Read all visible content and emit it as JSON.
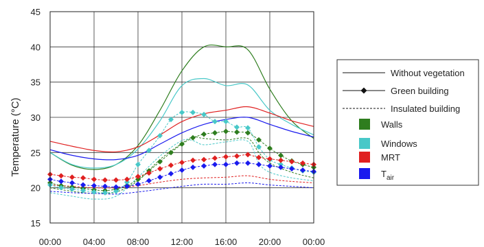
{
  "chart_data": {
    "type": "line",
    "title": "",
    "xlabel": "",
    "ylabel": "Temperature (°C)",
    "x_ticks": [
      "00:00",
      "04:00",
      "08:00",
      "12:00",
      "16:00",
      "20:00",
      "00:00"
    ],
    "x_range_hours": [
      0,
      24
    ],
    "ylim": [
      15,
      45
    ],
    "y_ticks": [
      15,
      20,
      25,
      30,
      35,
      40,
      45
    ],
    "grid": true,
    "legend_position": "right",
    "legend": {
      "styles": [
        {
          "label": "Without vegetation",
          "style": "solid"
        },
        {
          "label": "Green building",
          "style": "diamond"
        },
        {
          "label": "Insulated building",
          "style": "dashed"
        }
      ],
      "variables": [
        {
          "label": "Walls",
          "sub": "",
          "color": "#2e7d1e"
        },
        {
          "label": "Windows",
          "sub": "",
          "color": "#48c8c8"
        },
        {
          "label": "MRT",
          "sub": "",
          "color": "#e02020"
        },
        {
          "label": "T",
          "sub": "air",
          "color": "#1a1aee"
        }
      ]
    },
    "series": [
      {
        "variable": "Walls",
        "style": "solid",
        "color": "#2e7d1e",
        "x": [
          0,
          2,
          4,
          6,
          8,
          10,
          12,
          14,
          16,
          18,
          20,
          22,
          24
        ],
        "y": [
          25,
          23.2,
          22.6,
          23.3,
          26,
          31,
          36.6,
          40,
          40,
          39.6,
          34,
          29.5,
          27
        ]
      },
      {
        "variable": "Windows",
        "style": "solid",
        "color": "#48c8c8",
        "x": [
          0,
          2,
          4,
          6,
          8,
          10,
          12,
          14,
          16,
          18,
          20,
          22,
          24
        ],
        "y": [
          25,
          23.3,
          22.8,
          23.3,
          25.5,
          29.5,
          34.5,
          35.5,
          34.5,
          34.6,
          31,
          29,
          27.5
        ]
      },
      {
        "variable": "MRT",
        "style": "solid",
        "color": "#e02020",
        "x": [
          0,
          2,
          4,
          6,
          8,
          10,
          12,
          14,
          16,
          18,
          20,
          22,
          24
        ],
        "y": [
          26.6,
          25.9,
          25.3,
          25.1,
          25.8,
          27.5,
          29.4,
          30.5,
          31,
          31.5,
          30.6,
          29.5,
          28.7
        ]
      },
      {
        "variable": "T",
        "style": "solid",
        "color": "#1a1aee",
        "x": [
          0,
          2,
          4,
          6,
          8,
          10,
          12,
          14,
          16,
          18,
          20,
          22,
          24
        ],
        "y": [
          25.4,
          24.6,
          24.1,
          24,
          24.6,
          26.2,
          27.8,
          29,
          29.7,
          30,
          29,
          28,
          27.2
        ]
      },
      {
        "variable": "Walls",
        "style": "diamond",
        "color": "#2e7d1e",
        "x": [
          0,
          1,
          2,
          3,
          4,
          5,
          6,
          7,
          8,
          9,
          10,
          11,
          12,
          13,
          14,
          15,
          16,
          17,
          18,
          19,
          20,
          21,
          22,
          23,
          24
        ],
        "y": [
          20.7,
          20.3,
          20.1,
          19.9,
          19.7,
          19.6,
          19.8,
          20.3,
          21.2,
          22.4,
          23.7,
          25,
          26.2,
          27.1,
          27.6,
          27.8,
          28,
          27.9,
          27.8,
          26.8,
          25.6,
          24.6,
          23.8,
          23.3,
          22.9
        ]
      },
      {
        "variable": "Windows",
        "style": "diamond",
        "color": "#48c8c8",
        "x": [
          0,
          1,
          2,
          3,
          4,
          5,
          6,
          7,
          8,
          9,
          10,
          11,
          12,
          13,
          14,
          15,
          16,
          17,
          18,
          19,
          20,
          21,
          22,
          23,
          24
        ],
        "y": [
          20.4,
          20,
          19.8,
          19.6,
          19.4,
          19.3,
          19.5,
          20.8,
          23.3,
          25.3,
          27.4,
          29.7,
          30.7,
          30.7,
          30.4,
          29.4,
          29.4,
          28.6,
          28.5,
          25.8,
          24,
          23.3,
          22.8,
          22.4,
          22.2
        ]
      },
      {
        "variable": "MRT",
        "style": "diamond",
        "color": "#e02020",
        "x": [
          0,
          1,
          2,
          3,
          4,
          5,
          6,
          7,
          8,
          9,
          10,
          11,
          12,
          13,
          14,
          15,
          16,
          17,
          18,
          19,
          20,
          21,
          22,
          23,
          24
        ],
        "y": [
          21.9,
          21.7,
          21.5,
          21.4,
          21.2,
          21.1,
          21.1,
          21.2,
          21.6,
          22.1,
          22.7,
          23.2,
          23.6,
          23.9,
          24,
          24.2,
          24.4,
          24.5,
          24.7,
          24.3,
          24.1,
          23.9,
          23.7,
          23.5,
          23.3
        ]
      },
      {
        "variable": "T",
        "style": "diamond",
        "color": "#1a1aee",
        "x": [
          0,
          1,
          2,
          3,
          4,
          5,
          6,
          7,
          8,
          9,
          10,
          11,
          12,
          13,
          14,
          15,
          16,
          17,
          18,
          19,
          20,
          21,
          22,
          23,
          24
        ],
        "y": [
          21.2,
          20.9,
          20.7,
          20.4,
          20.3,
          20.2,
          20.1,
          20.2,
          20.5,
          21,
          21.5,
          22,
          22.5,
          22.9,
          23.1,
          23.3,
          23.3,
          23.5,
          23.5,
          23.3,
          23.1,
          22.9,
          22.7,
          22.5,
          22.3
        ]
      },
      {
        "variable": "Walls",
        "style": "dashed",
        "color": "#2e7d1e",
        "x": [
          0,
          2,
          4,
          6,
          8,
          10,
          12,
          13,
          14,
          16,
          18,
          19,
          20,
          22,
          24
        ],
        "y": [
          20,
          19.5,
          19.2,
          19.4,
          21,
          24,
          26.3,
          27.2,
          27,
          26.8,
          27,
          25,
          23.5,
          22.2,
          21.4
        ]
      },
      {
        "variable": "Windows",
        "style": "dashed",
        "color": "#48c8c8",
        "x": [
          0,
          2,
          4,
          6,
          8,
          10,
          12,
          13,
          14,
          16,
          18,
          19,
          20,
          22,
          24
        ],
        "y": [
          19.3,
          18.8,
          18.4,
          18.8,
          21.5,
          24.5,
          26.7,
          26.7,
          26.1,
          26.5,
          26.6,
          23.5,
          22.2,
          21.4,
          21
        ]
      },
      {
        "variable": "MRT",
        "style": "dashed",
        "color": "#e02020",
        "x": [
          0,
          2,
          4,
          6,
          8,
          10,
          12,
          14,
          16,
          18,
          20,
          22,
          24
        ],
        "y": [
          20.4,
          20.2,
          20,
          20,
          20.3,
          20.8,
          21.2,
          21.4,
          21.5,
          21.7,
          21.2,
          20.9,
          20.7
        ]
      },
      {
        "variable": "T",
        "style": "dashed",
        "color": "#1a1aee",
        "x": [
          0,
          2,
          4,
          6,
          8,
          10,
          12,
          14,
          16,
          18,
          20,
          22,
          24
        ],
        "y": [
          19.5,
          19.3,
          19.2,
          19.1,
          19.4,
          19.8,
          20.2,
          20.5,
          20.5,
          20.7,
          20.4,
          20.2,
          20
        ]
      }
    ]
  }
}
